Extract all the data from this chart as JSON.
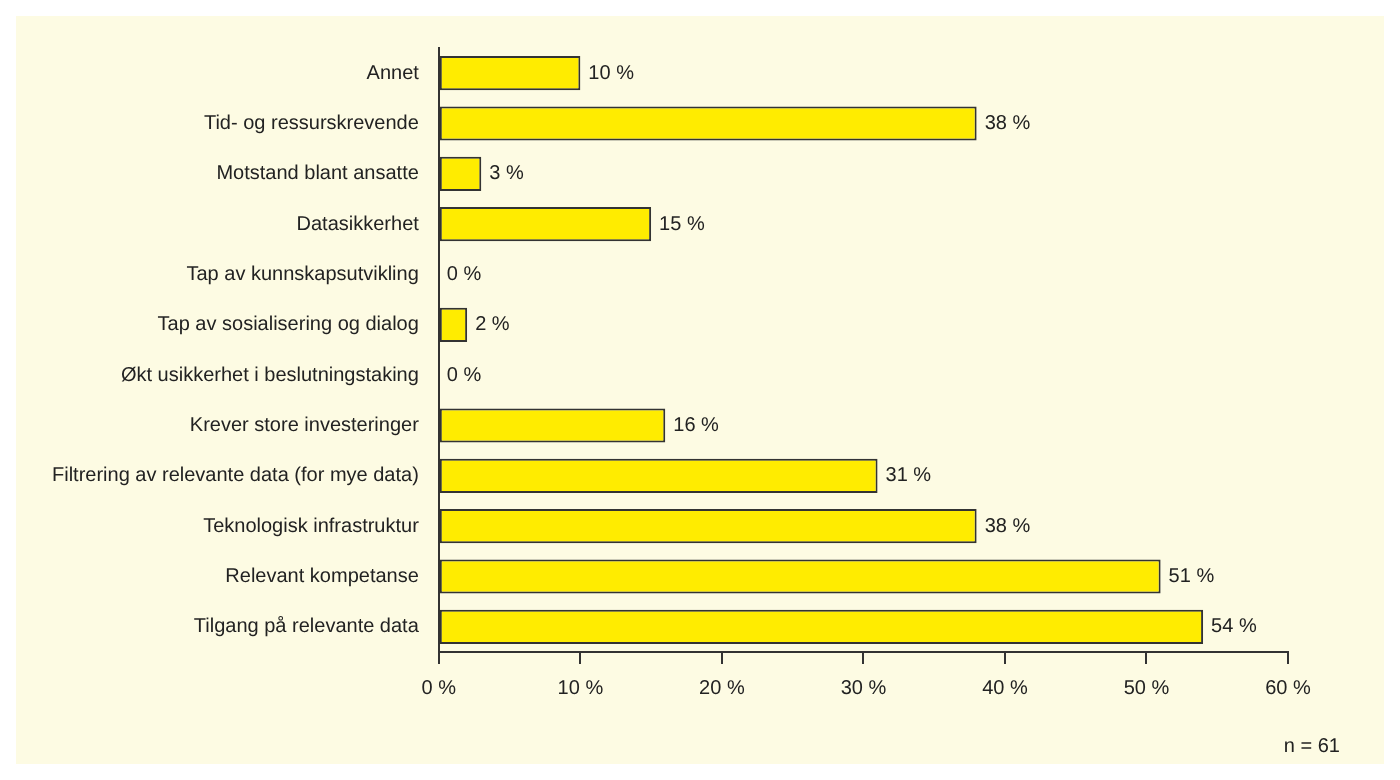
{
  "chart_data": {
    "type": "bar",
    "orientation": "horizontal",
    "categories": [
      "Annet",
      "Tid- og ressurskrevende",
      "Motstand blant ansatte",
      "Datasikkerhet",
      "Tap av kunnskapsutvikling",
      "Tap av sosialisering og dialog",
      "Økt usikkerhet i beslutningstaking",
      "Krever store investeringer",
      "Filtrering av relevante data (for mye data)",
      "Teknologisk infrastruktur",
      "Relevant kompetanse",
      "Tilgang på relevante data"
    ],
    "values": [
      10,
      38,
      3,
      15,
      0,
      2,
      0,
      16,
      31,
      38,
      51,
      54
    ],
    "value_labels": [
      "10 %",
      "38 %",
      "3 %",
      "15 %",
      "0 %",
      "2 %",
      "0 %",
      "16 %",
      "31 %",
      "38 %",
      "51 %",
      "54 %"
    ],
    "color": "#ffec00",
    "xlim": [
      0,
      60
    ],
    "xticks": [
      {
        "value": 0,
        "label": "0 %"
      },
      {
        "value": 10,
        "label": "10 %"
      },
      {
        "value": 20,
        "label": "20 %"
      },
      {
        "value": 30,
        "label": "30 %"
      },
      {
        "value": 40,
        "label": "40 %"
      },
      {
        "value": 50,
        "label": "50 %"
      },
      {
        "value": 60,
        "label": "60 %"
      }
    ],
    "grid": false,
    "legend": false,
    "annotations": [
      "n = 61"
    ]
  }
}
